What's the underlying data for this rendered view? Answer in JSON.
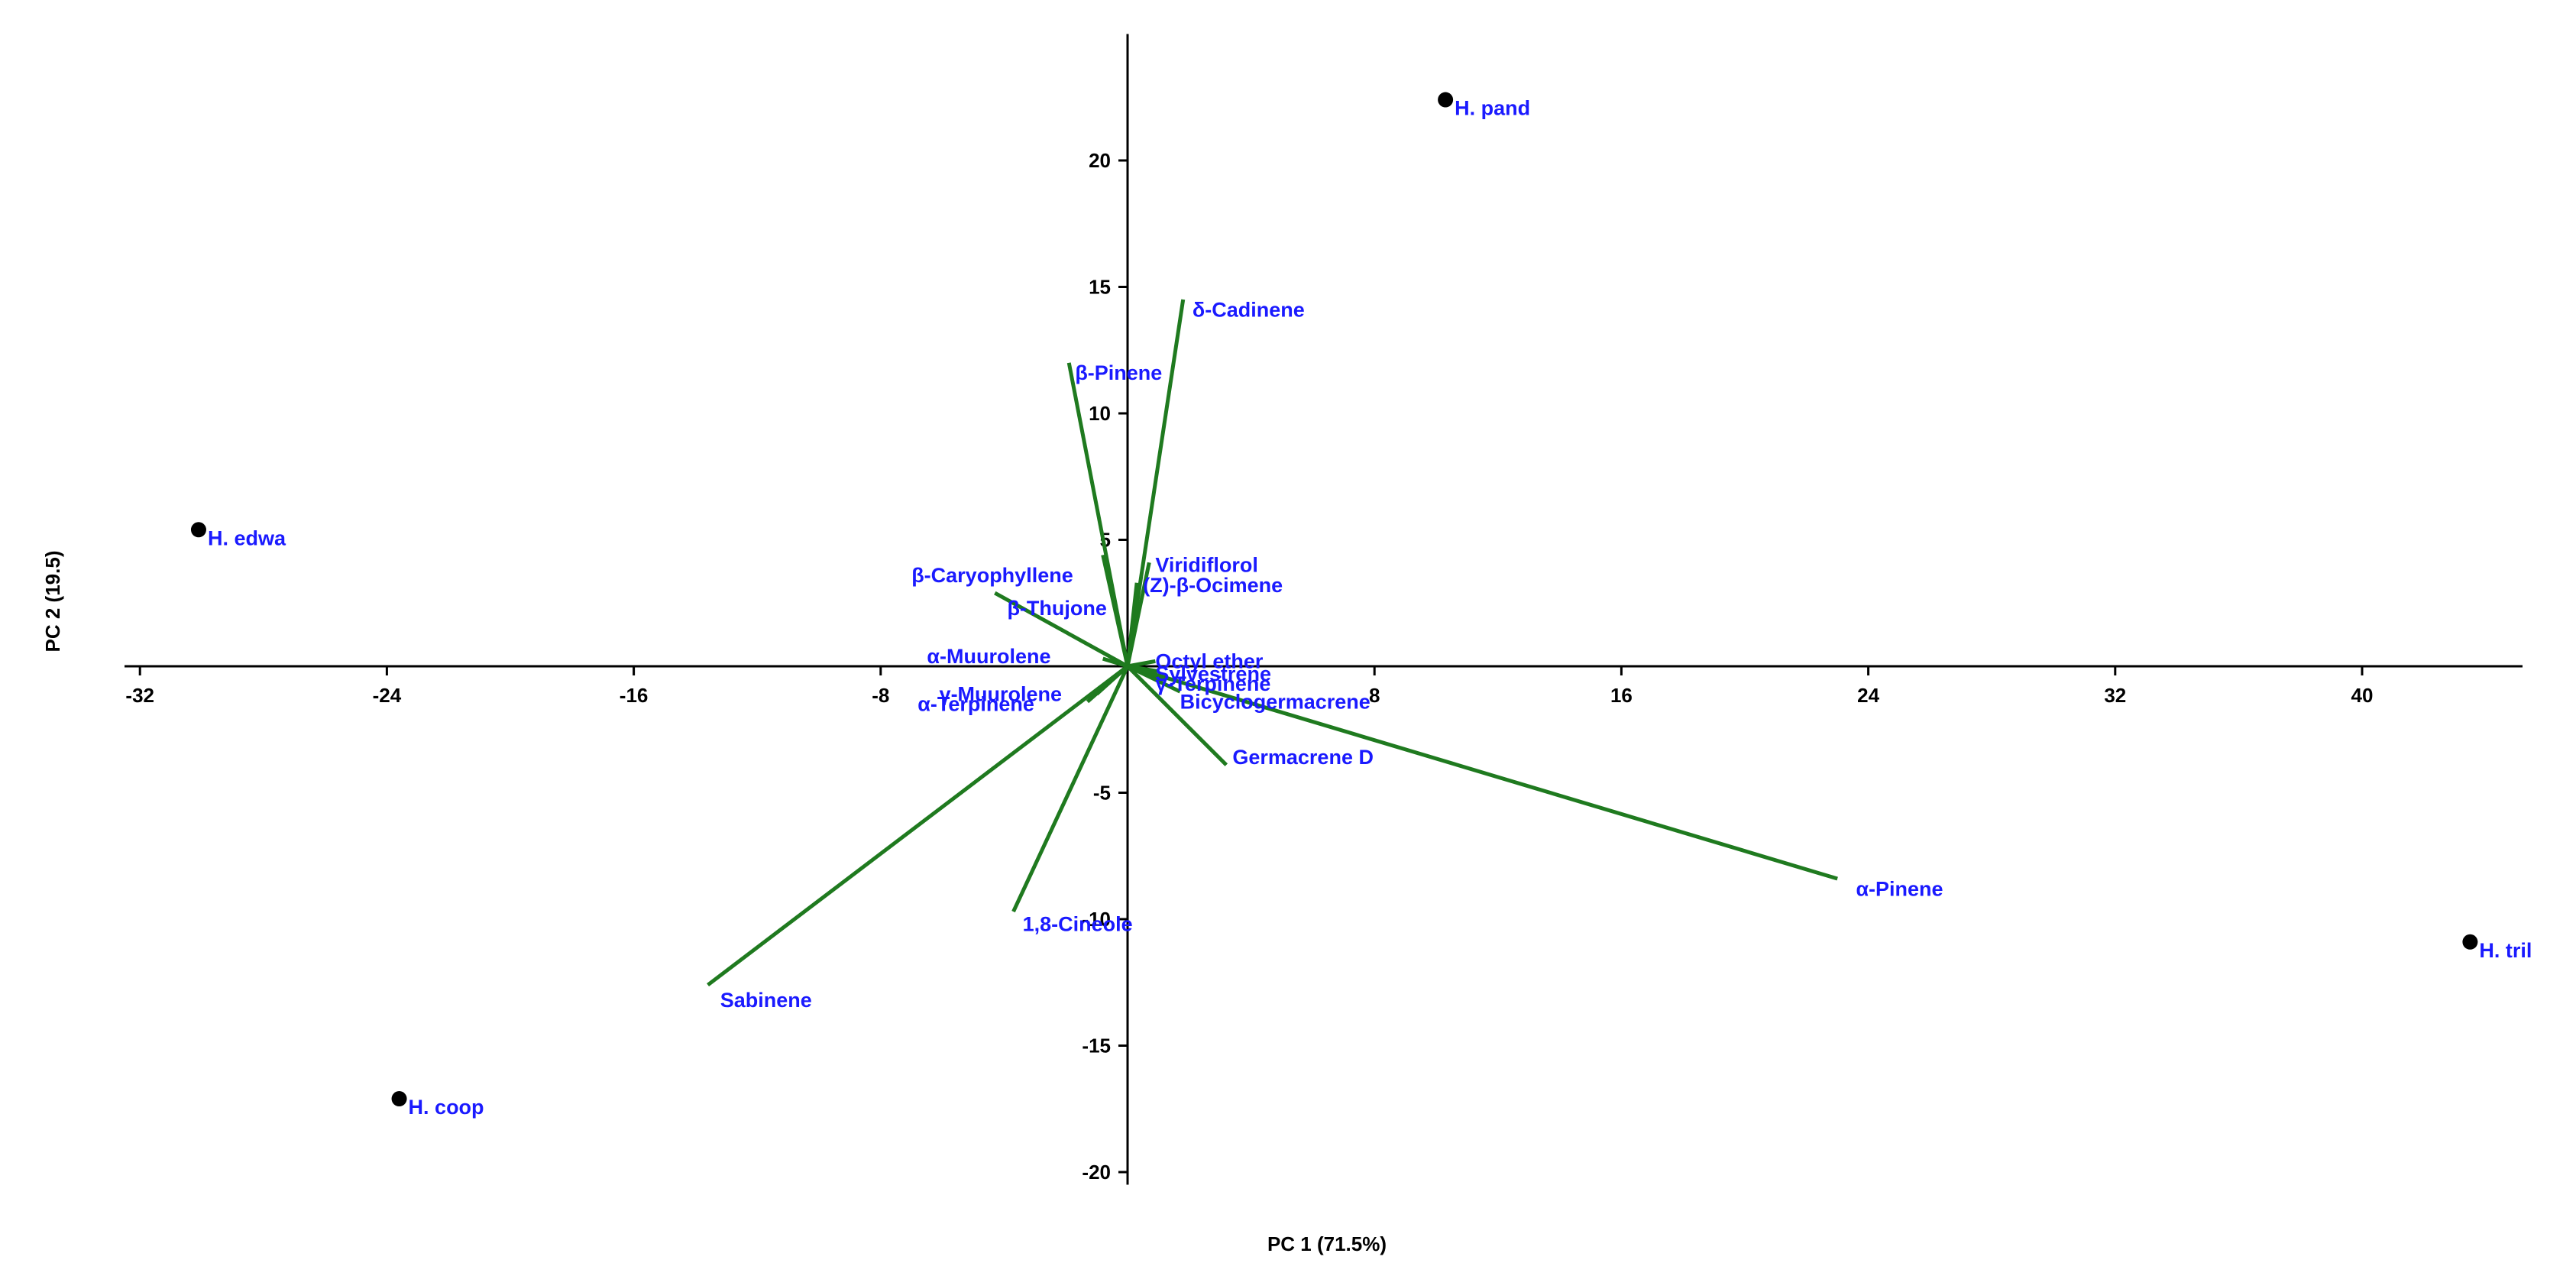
{
  "colors": {
    "vector": "#1f7a1f",
    "label": "#1a1aff",
    "point": "#000000",
    "axis": "#000000"
  },
  "chart_data": {
    "type": "scatter",
    "subtype": "pca-biplot",
    "xlabel": "PC 1 (71.5%)",
    "ylabel": "PC 2 (19.5)",
    "xlim": [
      -32.5,
      45
    ],
    "ylim": [
      -20.5,
      25
    ],
    "xticks": [
      -32,
      -24,
      -16,
      -8,
      8,
      16,
      24,
      32,
      40
    ],
    "xtick_labels": [
      "-32",
      "-24",
      "-16",
      "-8",
      "8",
      "16",
      "24",
      "32",
      "40"
    ],
    "yticks": [
      20,
      15,
      10,
      5,
      -5,
      -10,
      -15,
      -20
    ],
    "ytick_labels": [
      "20",
      "15",
      "10",
      "5",
      "-5",
      "-10",
      "-15",
      "-20"
    ],
    "points": [
      {
        "label": "H. pand",
        "x": 10.3,
        "y": 22.4
      },
      {
        "label": "H. edwa",
        "x": -30.1,
        "y": 5.4
      },
      {
        "label": "H. coop",
        "x": -23.6,
        "y": -17.1
      },
      {
        "label": "H. tril",
        "x": 43.5,
        "y": -10.9
      }
    ],
    "loadings": [
      {
        "label": "δ-Cadinene",
        "x": 1.8,
        "y": 14.5,
        "lx": 2.1,
        "ly": 14.1
      },
      {
        "label": "β-Pinene",
        "x": -1.9,
        "y": 12.0,
        "lx": -1.7,
        "ly": 11.6
      },
      {
        "label": "Viridiflorol",
        "x": 0.7,
        "y": 4.1,
        "lx": 0.9,
        "ly": 4.0
      },
      {
        "label": "(Z)-β-Ocimene",
        "x": 0.3,
        "y": 3.3,
        "lx": 0.5,
        "ly": 3.2
      },
      {
        "label": "β-Caryophyllene",
        "x": -0.8,
        "y": 4.4,
        "lx": -7.0,
        "ly": 3.6
      },
      {
        "label": "β-Thujone",
        "x": -4.3,
        "y": 2.9,
        "lx": -3.9,
        "ly": 2.3
      },
      {
        "label": "α-Muurolene",
        "x": -0.8,
        "y": 0.3,
        "lx": -6.5,
        "ly": 0.4
      },
      {
        "label": "Octyl ether",
        "x": 0.9,
        "y": 0.2,
        "lx": 0.9,
        "ly": 0.2
      },
      {
        "label": "Sylvestrene",
        "x": 1.0,
        "y": -0.2,
        "lx": 0.9,
        "ly": -0.3
      },
      {
        "label": "γ-Terpinene",
        "x": 1.2,
        "y": -0.5,
        "lx": 0.9,
        "ly": -0.7
      },
      {
        "label": "γ-Muurolene",
        "x": -1.0,
        "y": -1.1,
        "lx": -6.1,
        "ly": -1.1
      },
      {
        "label": "α-Terpinene",
        "x": -1.3,
        "y": -1.4,
        "lx": -6.8,
        "ly": -1.5
      },
      {
        "label": "Bicyclogermacrene",
        "x": 1.7,
        "y": -1.0,
        "lx": 1.7,
        "ly": -1.4
      },
      {
        "label": "Germacrene D",
        "x": 3.2,
        "y": -3.9,
        "lx": 3.4,
        "ly": -3.6
      },
      {
        "label": "α-Pinene",
        "x": 23.0,
        "y": -8.4,
        "lx": 23.6,
        "ly": -8.8
      },
      {
        "label": "1,8-Cineole",
        "x": -3.7,
        "y": -9.7,
        "lx": -3.4,
        "ly": -10.2
      },
      {
        "label": "Sabinene",
        "x": -13.6,
        "y": -12.6,
        "lx": -13.2,
        "ly": -13.2
      }
    ]
  }
}
